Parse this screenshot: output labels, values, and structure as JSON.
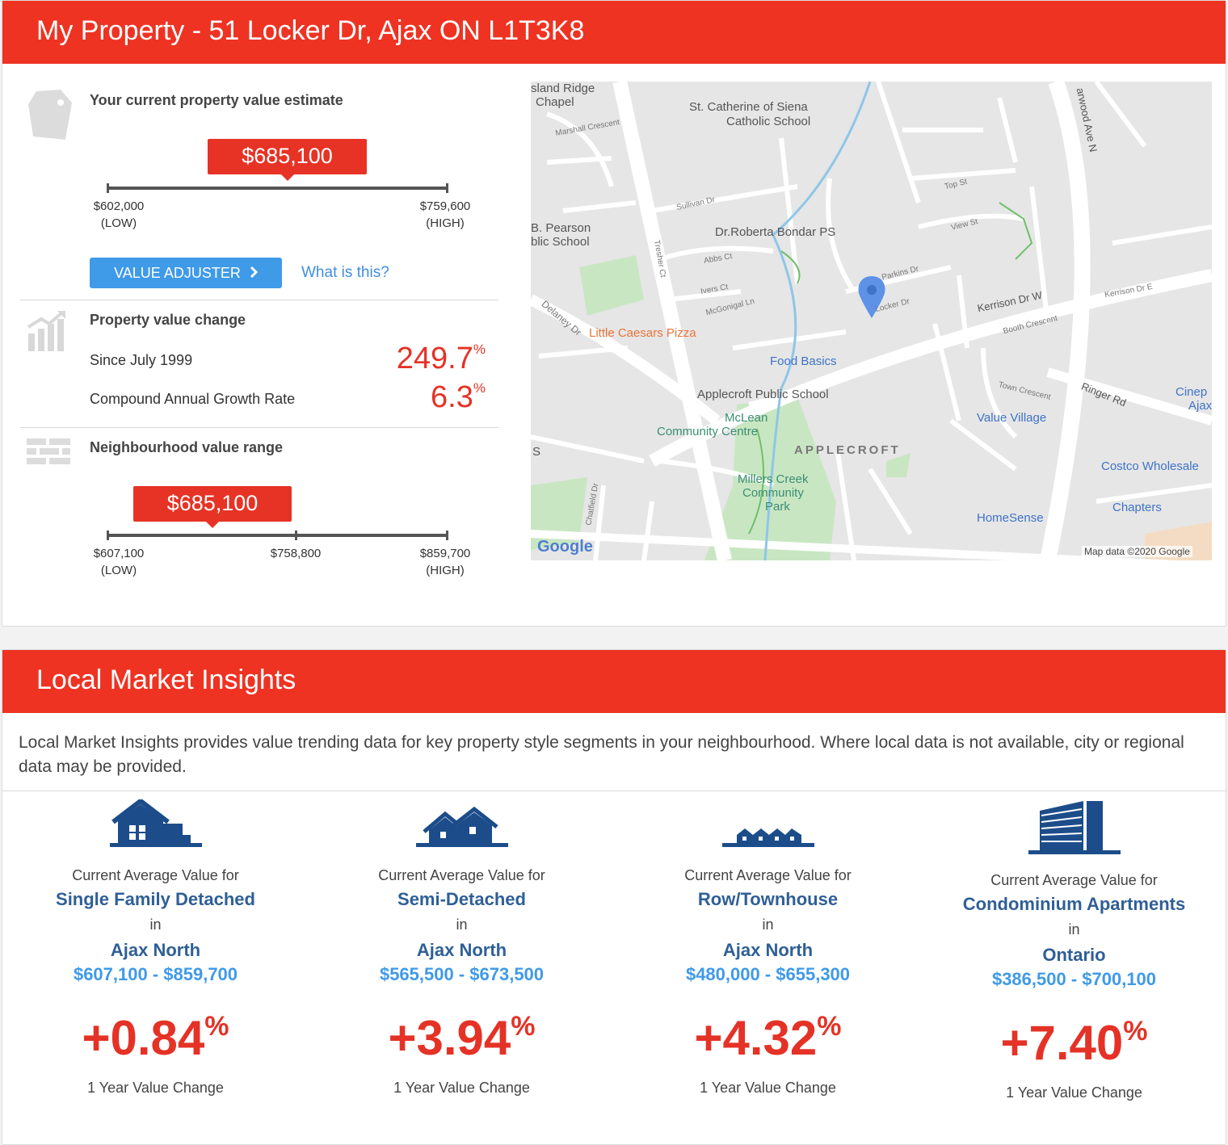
{
  "property": {
    "header": "My Property - 51 Locker Dr, Ajax ON L1T3K8",
    "estimate_title": "Your current property value estimate",
    "estimate_value": "$685,100",
    "estimate_level": 0.53,
    "low": "$602,000",
    "high": "$759,600",
    "low_tag": "(LOW)",
    "high_tag": "(HIGH)",
    "adjuster_label": "VALUE ADJUSTER",
    "what_is_this": "What is this?",
    "change_title": "Property value change",
    "since_label": "Since July 1999",
    "since_value": "249.7",
    "cagr_label": "Compound Annual Growth Rate",
    "cagr_value": "6.3",
    "percent": "%",
    "range_title": "Neighbourhood value range",
    "range_value": "$685,100",
    "range_low": "$607,100",
    "range_mid": "$758,800",
    "range_high": "$859,700"
  },
  "map": {
    "labels": {
      "island_ridge": "sland Ridge",
      "chapel": "Chapel",
      "st_catherine": "St. Catherine of Siena",
      "catholic_school": "Catholic School",
      "pearson": "B. Pearson",
      "public_school": "blic School",
      "bondar": "Dr.Roberta Bondar PS",
      "little_caesars": "Little Caesars Pizza",
      "food_basics": "Food Basics",
      "applecroft_ps": "Applecroft Public School",
      "mclean": "McLean",
      "community_centre": "Community Centre",
      "applecroft": "APPLECROFT",
      "millers1": "Millers Creek",
      "millers2": "Community",
      "millers3": "Park",
      "value_village": "Value Village",
      "costco": "Costco Wholesale",
      "chapters": "Chapters",
      "homesense": "HomeSense",
      "cinep": "Cinep",
      "ajax": "Ajax",
      "kerrison": "Kerrison Dr W",
      "ringer": "Ringer Rd",
      "harwood": "arwood Ave N",
      "google": "Google",
      "map_data": "Map data ©2020 Google",
      "s_stub": "S"
    },
    "streets": {
      "marshall": "Marshall Crescent",
      "sullivan": "Sullivan Dr",
      "abbs": "Abbs Ct",
      "ivers": "Ivers Ct",
      "mcgonigal": "McGonigal Ln",
      "delaney": "Delaney Dr",
      "tresher": "Tresher Ct",
      "top": "Top St",
      "view": "View St",
      "parkins": "Parkins Dr",
      "locker": "Locker Dr",
      "booth": "Booth Crescent",
      "town": "Town Crescent",
      "chatfield": "Chatfield Dr",
      "kerrison_e": "Kerrison Dr E"
    }
  },
  "market": {
    "header": "Local Market Insights",
    "intro": "Local Market Insights provides value trending data for key property style segments in your neighbourhood. Where local data is not available, city or regional data may be provided.",
    "in_label": "in",
    "current_label": "Current Average Value for",
    "change_label": "1 Year Value Change",
    "percent": "%",
    "segments": [
      {
        "icon": "single-family-house-icon",
        "type": "Single Family Detached",
        "area": "Ajax North",
        "range": "$607,100 - $859,700",
        "change": "+0.84"
      },
      {
        "icon": "semi-detached-house-icon",
        "type": "Semi-Detached",
        "area": "Ajax North",
        "range": "$565,500 - $673,500",
        "change": "+3.94"
      },
      {
        "icon": "townhouse-row-icon",
        "type": "Row/Townhouse",
        "area": "Ajax North",
        "range": "$480,000 - $655,300",
        "change": "+4.32"
      },
      {
        "icon": "condominium-building-icon",
        "type": "Condominium Apartments",
        "area": "Ontario",
        "range": "$386,500 - $700,100",
        "change": "+7.40"
      }
    ]
  },
  "colors": {
    "brand_red": "#ee3323",
    "accent_blue": "#3f9ae8",
    "navy": "#1c4d8a",
    "value_red": "#e53226"
  }
}
